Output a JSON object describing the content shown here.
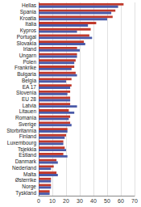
{
  "chart_data": {
    "type": "bar",
    "orientation": "horizontal",
    "grid": true,
    "categories": [
      "Hellas",
      "Spania",
      "Kroatia",
      "Italia",
      "Kypros",
      "Portugal",
      "Slovakia",
      "Irland",
      "Ungarn",
      "Polen",
      "Frankrike",
      "Bulgaria",
      "Belgia",
      "EA 17",
      "Slovenia",
      "EU 28",
      "Latvia",
      "Litauen",
      "Romania",
      "Sverige",
      "Storbritannia",
      "Finland",
      "Luxembourg",
      "Tsjekkia",
      "Estland",
      "Danmark",
      "Nederland",
      "Malta",
      "Østerrike",
      "Norge",
      "Tyskland"
    ],
    "series": [
      {
        "color": "#c0392b",
        "values": [
          62,
          56,
          54,
          42,
          38,
          37,
          33,
          28,
          28,
          27,
          26,
          27,
          24,
          24,
          23,
          23,
          23,
          22,
          23,
          23,
          21,
          20,
          18,
          19,
          18,
          13,
          11,
          13,
          9,
          9,
          8
        ]
      },
      {
        "color": "#4a5aa8",
        "values": [
          58,
          53,
          50,
          36,
          28,
          39,
          34,
          30,
          28,
          26,
          24,
          28,
          20,
          23,
          21,
          23,
          28,
          26,
          22,
          24,
          21,
          19,
          18,
          20,
          21,
          14,
          9,
          14,
          9,
          9,
          8
        ]
      }
    ],
    "xlim": [
      0,
      70
    ],
    "xticks": [
      0,
      10,
      20,
      30,
      40,
      50,
      60,
      70
    ]
  }
}
